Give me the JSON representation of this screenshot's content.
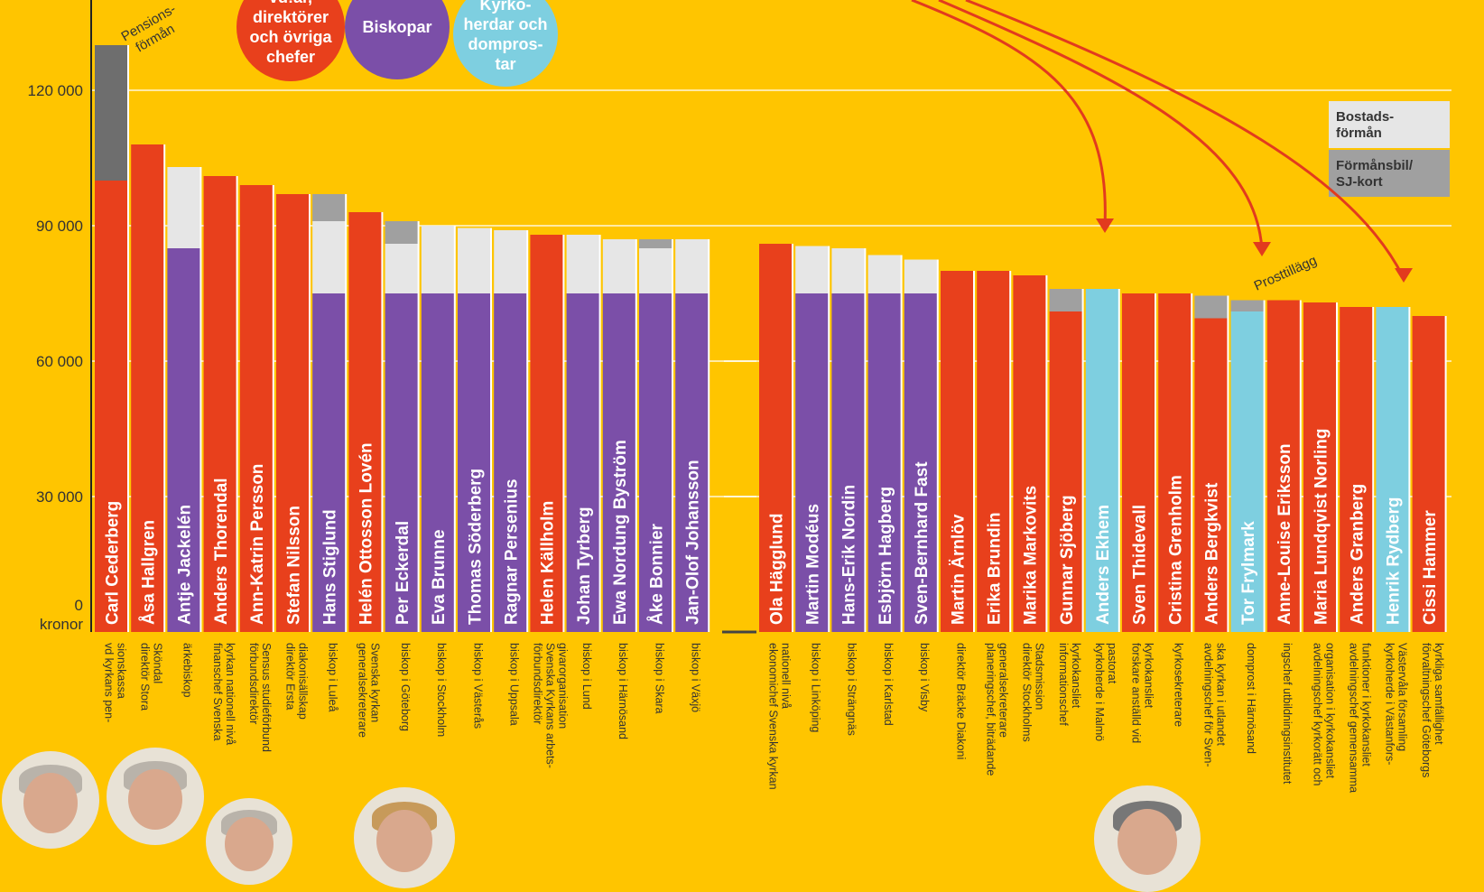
{
  "legend": {
    "groups": [
      {
        "lines": [
          "vd:ar,",
          "direktörer",
          "och övriga",
          "chefer"
        ],
        "color": "#E8401C"
      },
      {
        "lines": [
          "Biskopar"
        ],
        "color": "#7B4FA8"
      },
      {
        "lines": [
          "Kyrko-",
          "herdar och",
          "dompros-",
          "tar"
        ],
        "color": "#7ECFE0"
      }
    ],
    "components": [
      {
        "label_lines": [
          "Bostads-",
          "förmån"
        ],
        "color": "#E6E6E6"
      },
      {
        "label_lines": [
          "Förmånsbil/",
          "SJ-kort"
        ],
        "color": "#A0A0A0"
      }
    ]
  },
  "annotations": {
    "pension": [
      "Pensions-",
      "förmån"
    ],
    "prost": "Prosttillägg"
  },
  "icons": [
    "person-photo",
    "person-photo",
    "person-photo",
    "person-photo",
    "person-photo"
  ],
  "chart_data": {
    "type": "bar",
    "stacked": true,
    "ylabel_zero": "kronor",
    "ylim": [
      0,
      135000
    ],
    "yticks": [
      {
        "v": 0,
        "label": "0"
      },
      {
        "v": 30000,
        "label": "30 000"
      },
      {
        "v": 60000,
        "label": "60 000"
      },
      {
        "v": 90000,
        "label": "90 000"
      },
      {
        "v": 120000,
        "label": "120 000"
      }
    ],
    "colors": {
      "chef": "#E8401C",
      "biskop": "#7B4FA8",
      "kyrkoherde": "#7ECFE0",
      "bostad": "#E6E6E6",
      "bil": "#A0A0A0",
      "pension": "#6E6E6E"
    },
    "series": [
      "lön",
      "bostadsförmån",
      "förmånsbil/SJ-kort",
      "pensionsförmån"
    ],
    "panels": [
      [
        {
          "name": "Carl Cederberg",
          "title": [
            "vd kyrkans pen-",
            "sionskassa"
          ],
          "group": "chef",
          "base": 100000,
          "bostad": 0,
          "bil": 0,
          "pension": 30000
        },
        {
          "name": "Åsa Hallgren",
          "title": [
            "direktör Stora",
            "Sköndal"
          ],
          "group": "chef",
          "base": 108000,
          "bostad": 0,
          "bil": 0,
          "pension": 0
        },
        {
          "name": "Antje Jackelén",
          "title": [
            "ärkebiskop"
          ],
          "group": "biskop",
          "base": 85000,
          "bostad": 18000,
          "bil": 0,
          "pension": 0
        },
        {
          "name": "Anders Thorendal",
          "title": [
            "finanschef Svenska",
            "kyrkan nationell nivå"
          ],
          "group": "chef",
          "base": 101000,
          "bostad": 0,
          "bil": 0,
          "pension": 0
        },
        {
          "name": "Ann-Katrin Persson",
          "title": [
            "förbundsdirektör",
            "Sensus studieförbund"
          ],
          "group": "chef",
          "base": 99000,
          "bostad": 0,
          "bil": 0,
          "pension": 0
        },
        {
          "name": "Stefan Nilsson",
          "title": [
            "direktör Ersta",
            "diakonisällskap"
          ],
          "group": "chef",
          "base": 97000,
          "bostad": 0,
          "bil": 0,
          "pension": 0
        },
        {
          "name": "Hans Stiglund",
          "title": [
            "biskop i Luleå"
          ],
          "group": "biskop",
          "base": 75000,
          "bostad": 16000,
          "bil": 6000,
          "pension": 0
        },
        {
          "name": "Helén Ottosson Lovén",
          "title": [
            "generalsekreterare",
            "Svenska kyrkan"
          ],
          "group": "chef",
          "base": 93000,
          "bostad": 0,
          "bil": 0,
          "pension": 0
        },
        {
          "name": "Per Eckerdal",
          "title": [
            "biskop i Göteborg"
          ],
          "group": "biskop",
          "base": 75000,
          "bostad": 11000,
          "bil": 5000,
          "pension": 0
        },
        {
          "name": "Eva Brunne",
          "title": [
            "biskop i Stockholm"
          ],
          "group": "biskop",
          "base": 75000,
          "bostad": 15000,
          "bil": 0,
          "pension": 0
        },
        {
          "name": "Thomas Söderberg",
          "title": [
            "biskop i Västerås"
          ],
          "group": "biskop",
          "base": 75000,
          "bostad": 14500,
          "bil": 0,
          "pension": 0
        },
        {
          "name": "Ragnar Persenius",
          "title": [
            "biskop i Uppsala"
          ],
          "group": "biskop",
          "base": 75000,
          "bostad": 14000,
          "bil": 0,
          "pension": 0
        },
        {
          "name": "Helen Källholm",
          "title": [
            "förbundsdirektör",
            "Svenska Kyrkans arbets-",
            "givarorganisation"
          ],
          "group": "chef",
          "base": 88000,
          "bostad": 0,
          "bil": 0,
          "pension": 0
        },
        {
          "name": "Johan Tyrberg",
          "title": [
            "biskop i Lund"
          ],
          "group": "biskop",
          "base": 75000,
          "bostad": 13000,
          "bil": 0,
          "pension": 0
        },
        {
          "name": "Ewa Nordung Byström",
          "title": [
            "biskop i Härnösand"
          ],
          "group": "biskop",
          "base": 75000,
          "bostad": 12000,
          "bil": 0,
          "pension": 0
        },
        {
          "name": "Åke Bonnier",
          "title": [
            "biskop i Skara"
          ],
          "group": "biskop",
          "base": 75000,
          "bostad": 10000,
          "bil": 2000,
          "pension": 0
        },
        {
          "name": "Jan-Olof Johansson",
          "title": [
            "biskop i Växjö"
          ],
          "group": "biskop",
          "base": 75000,
          "bostad": 12000,
          "bil": 0,
          "pension": 0
        }
      ],
      [
        {
          "name": "Ola Hägglund",
          "title": [
            "ekonomichef Svenska kyrkan",
            "nationell nivå"
          ],
          "group": "chef",
          "base": 86000,
          "bostad": 0,
          "bil": 0,
          "pension": 0
        },
        {
          "name": "Martin Modéus",
          "title": [
            "biskop i Linköping"
          ],
          "group": "biskop",
          "base": 75000,
          "bostad": 10500,
          "bil": 0,
          "pension": 0
        },
        {
          "name": "Hans-Erik Nordin",
          "title": [
            "biskop i Strängnäs"
          ],
          "group": "biskop",
          "base": 75000,
          "bostad": 10000,
          "bil": 0,
          "pension": 0
        },
        {
          "name": "Esbjörn Hagberg",
          "title": [
            "biskop i Karlstad"
          ],
          "group": "biskop",
          "base": 75000,
          "bostad": 8500,
          "bil": 0,
          "pension": 0
        },
        {
          "name": "Sven-Bernhard Fast",
          "title": [
            "biskop i Visby"
          ],
          "group": "biskop",
          "base": 75000,
          "bostad": 7500,
          "bil": 0,
          "pension": 0
        },
        {
          "name": "Martin Ärnlöv",
          "title": [
            "direktör Bräcke Diakoni"
          ],
          "group": "chef",
          "base": 80000,
          "bostad": 0,
          "bil": 0,
          "pension": 0
        },
        {
          "name": "Erika Brundin",
          "title": [
            "planeringschef, biträdande",
            "generalsekreterare"
          ],
          "group": "chef",
          "base": 80000,
          "bostad": 0,
          "bil": 0,
          "pension": 0
        },
        {
          "name": "Marika Markovits",
          "title": [
            "direktör Stockholms",
            "Stadsmission"
          ],
          "group": "chef",
          "base": 79000,
          "bostad": 0,
          "bil": 0,
          "pension": 0
        },
        {
          "name": "Gunnar Sjöberg",
          "title": [
            "informationschef",
            "kyrkokansliet"
          ],
          "group": "chef",
          "base": 71000,
          "bostad": 0,
          "bil": 5000,
          "pension": 0
        },
        {
          "name": "Anders Ekhem",
          "title": [
            "kyrkoherde i Malmö",
            "pastorat"
          ],
          "group": "kyrkoherde",
          "base": 76000,
          "bostad": 0,
          "bil": 0,
          "pension": 0
        },
        {
          "name": "Sven Thidevall",
          "title": [
            "forskare anställd vid",
            "kyrkokansliet"
          ],
          "group": "chef",
          "base": 75000,
          "bostad": 0,
          "bil": 0,
          "pension": 0
        },
        {
          "name": "Cristina Grenholm",
          "title": [
            "kyrkosekreterare"
          ],
          "group": "chef",
          "base": 75000,
          "bostad": 0,
          "bil": 0,
          "pension": 0
        },
        {
          "name": "Anders Bergkvist",
          "title": [
            "avdelningschef för Sven-",
            "ska kyrkan i utlandet"
          ],
          "group": "chef",
          "base": 69500,
          "bostad": 0,
          "bil": 5000,
          "pension": 0
        },
        {
          "name": "Tor Frylmark",
          "title": [
            "domprost i Härnösand"
          ],
          "group": "kyrkoherde",
          "base": 71000,
          "bostad": 0,
          "bil": 2500,
          "pension": 0
        },
        {
          "name": "Anne-Louise Eriksson",
          "title": [
            "ingschef utbildningsinstitutet"
          ],
          "group": "chef",
          "base": 73500,
          "bostad": 0,
          "bil": 0,
          "pension": 0
        },
        {
          "name": "Maria Lundqvist Norling",
          "title": [
            "avdelningschef kyrkorätt och",
            "organisation i kyrkokansliet"
          ],
          "group": "chef",
          "base": 73000,
          "bostad": 0,
          "bil": 0,
          "pension": 0
        },
        {
          "name": "Anders Granberg",
          "title": [
            "avdelningschef gemensamma",
            "funktioner i kyrkokansliet"
          ],
          "group": "chef",
          "base": 72000,
          "bostad": 0,
          "bil": 0,
          "pension": 0
        },
        {
          "name": "Henrik Rydberg",
          "title": [
            "kyrkoherde i Västanfors-",
            "Västervåla församling"
          ],
          "group": "kyrkoherde",
          "base": 72000,
          "bostad": 0,
          "bil": 0,
          "pension": 0
        },
        {
          "name": "Cissi Hammer",
          "title": [
            "förvaltningschef Göteborgs",
            "kyrkliga samfällighet"
          ],
          "group": "chef",
          "base": 70000,
          "bostad": 0,
          "bil": 0,
          "pension": 0
        }
      ]
    ]
  }
}
